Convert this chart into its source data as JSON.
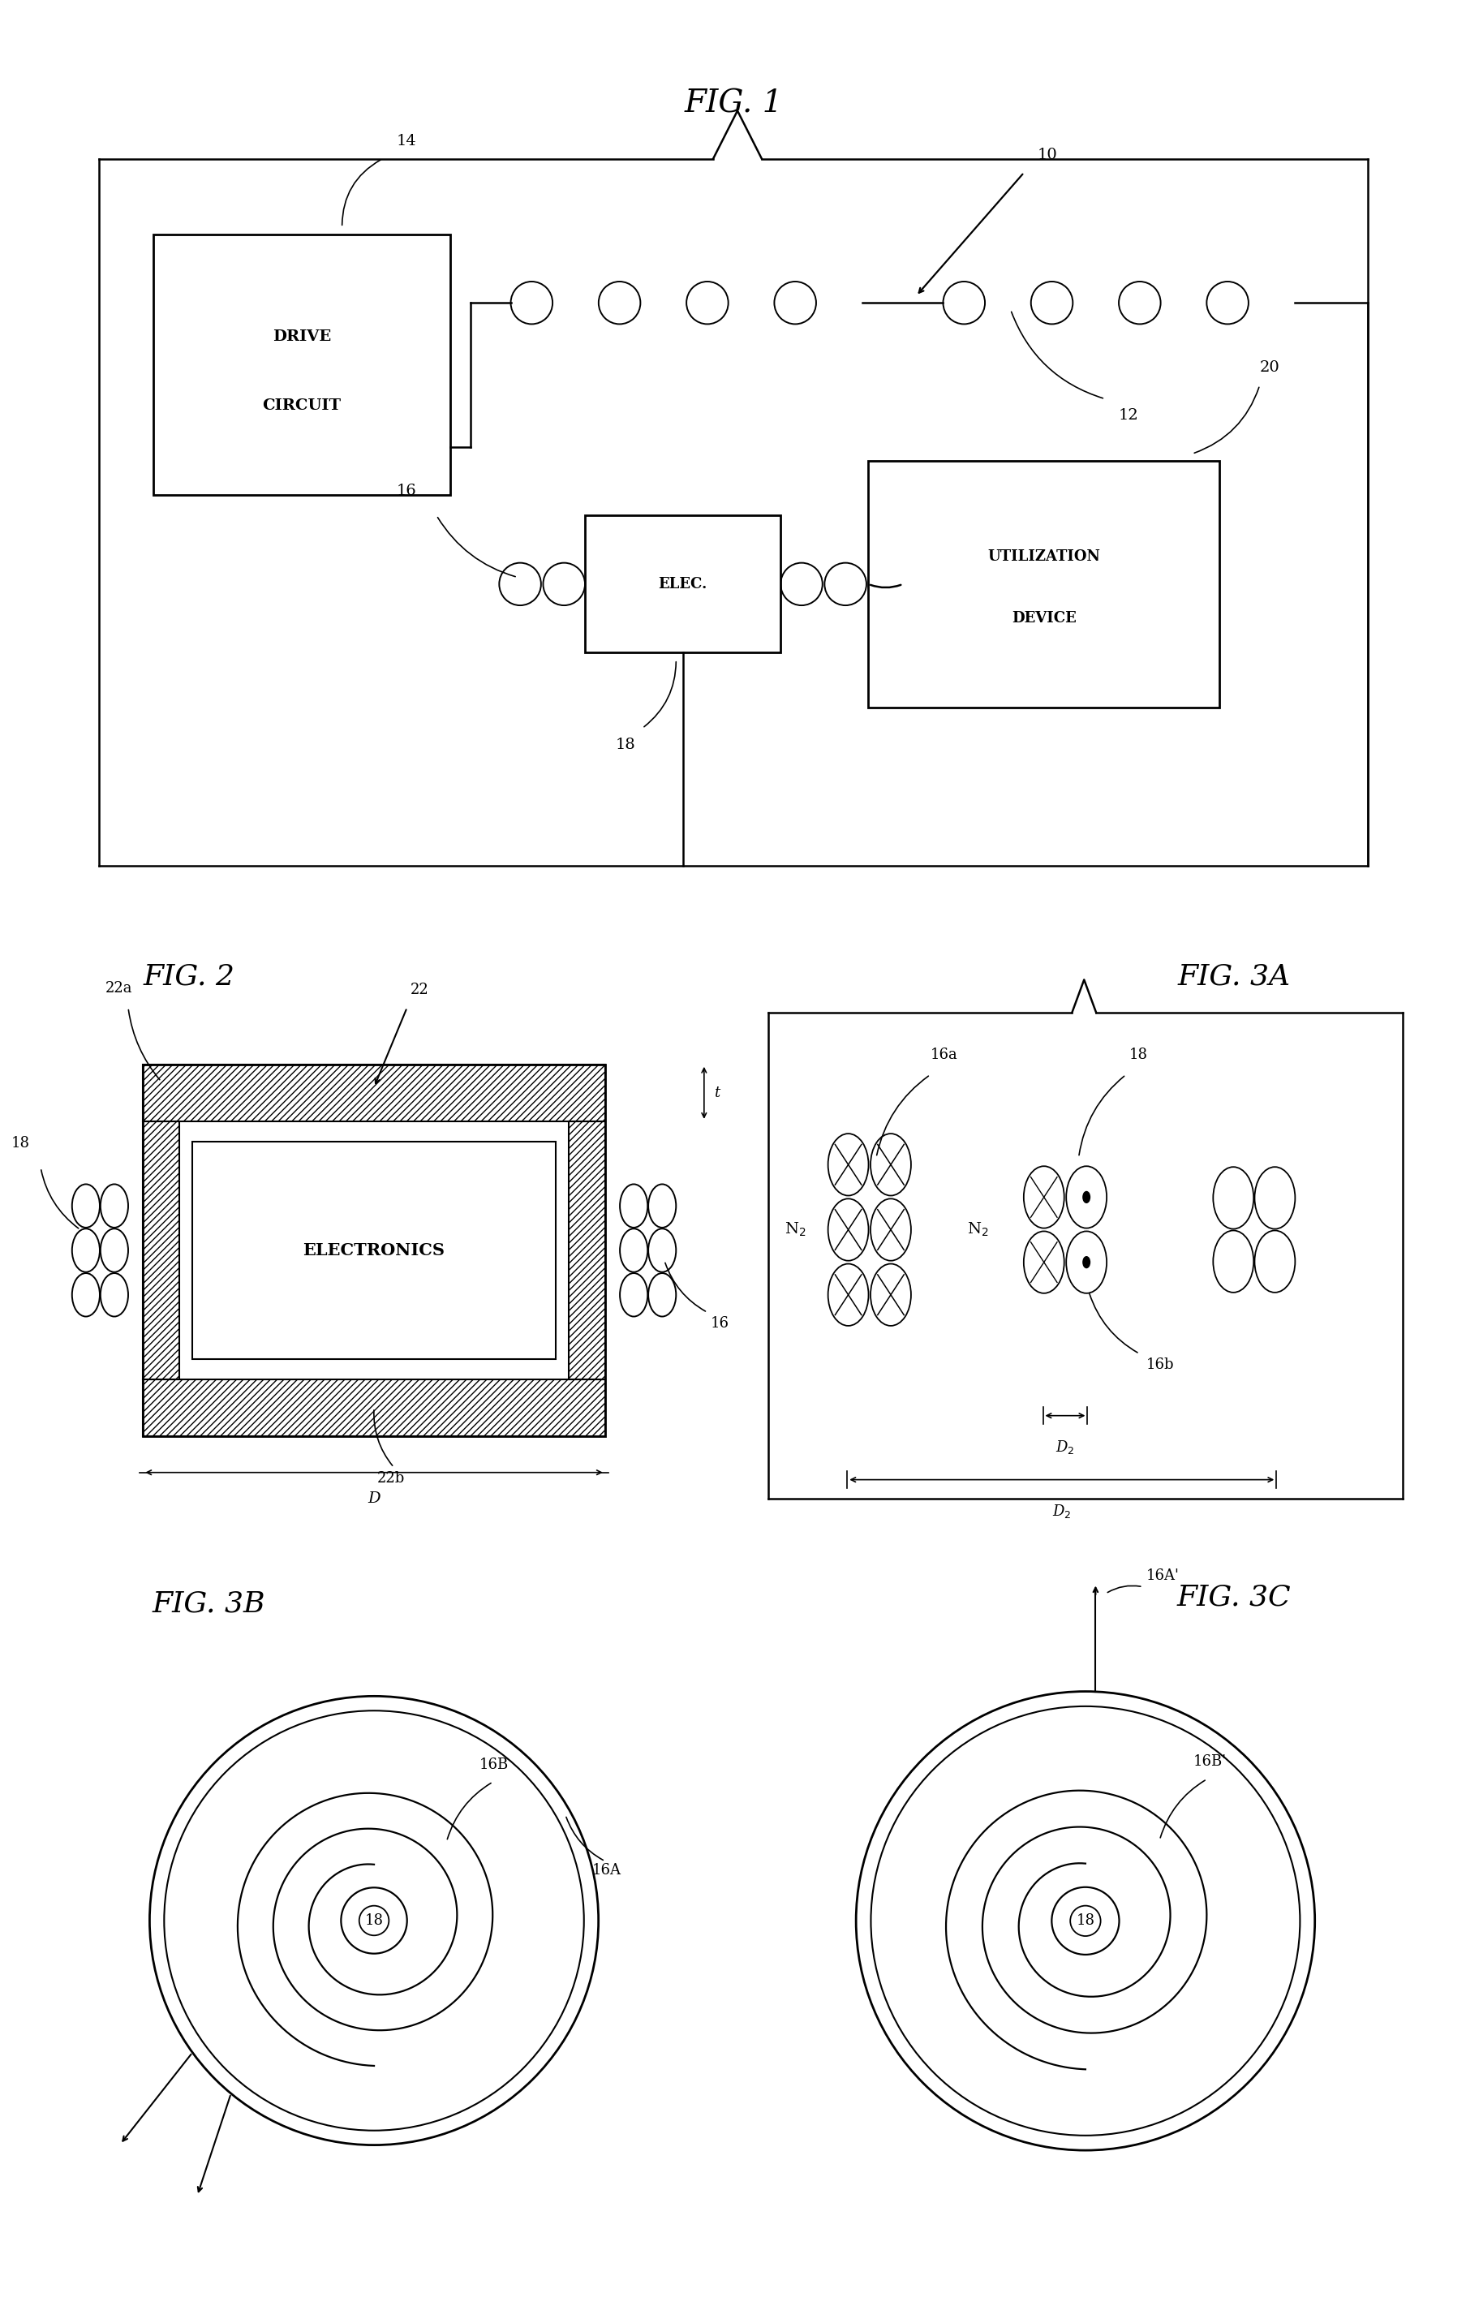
{
  "fig_title1": "FIG. 1",
  "fig_title2": "FIG. 2",
  "fig_title3a": "FIG. 3A",
  "fig_title3b": "FIG. 3B",
  "fig_title3c": "FIG. 3C",
  "bg_color": "#ffffff",
  "line_color": "#000000",
  "font_family": "DejaVu Serif"
}
